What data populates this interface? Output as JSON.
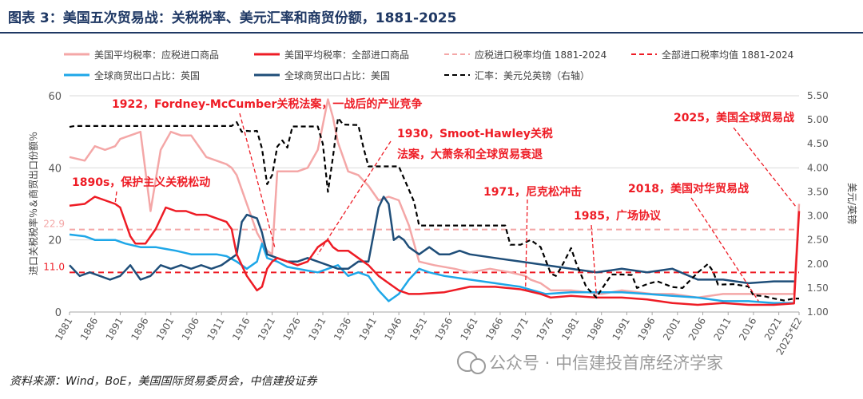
{
  "title": "图表 3：美国五次贸易战：关税税率、美元汇率和商贸份额，1881-2025",
  "source": "资料来源：Wind，BoE，美国国际贸易委员会，中信建投证券",
  "watermark": "公众号 · 中信建投首席经济学家",
  "colors": {
    "title_bar": "#1f3864",
    "tariff_dutiable": "#f4a7a7",
    "tariff_all": "#ee1c25",
    "mean_dutiable": "#f4a7a7",
    "mean_all": "#ee1c25",
    "uk_share": "#1ea7e8",
    "us_share": "#1f4e79",
    "fx": "#000000",
    "annotation": "#ee1c25"
  },
  "chart_data": {
    "type": "line",
    "legend": [
      {
        "label": "美国平均税率：应税进口商品",
        "key": "tariff_dutiable"
      },
      {
        "label": "美国平均税率：全部进口商品",
        "key": "tariff_all"
      },
      {
        "label": "应税进口税率均值 1881-2024",
        "key": "mean_dutiable"
      },
      {
        "label": "全部进口税率均值 1881-2024",
        "key": "mean_all"
      },
      {
        "label": "全球商贸出口占比：英国",
        "key": "uk_share"
      },
      {
        "label": "全球商贸出口占比：美国",
        "key": "us_share"
      },
      {
        "label": "汇率：美元兑英镑（右轴）",
        "key": "fx"
      }
    ],
    "ylabel_left": "进口关税税率％＆商贸出口份额％",
    "ylabel_right": "美元/英镑",
    "ylim_left": [
      0,
      60
    ],
    "ylim_right": [
      1.0,
      5.5
    ],
    "y_ticks_left": [
      0,
      20,
      40,
      60
    ],
    "y_ticks_right": [
      "1.00",
      "1.50",
      "2.00",
      "2.50",
      "3.00",
      "3.50",
      "4.00",
      "4.50",
      "5.00",
      "5.50"
    ],
    "ref_lines": [
      {
        "label": "22.9",
        "value": 22.9,
        "key": "mean_dutiable"
      },
      {
        "label": "11.0",
        "value": 11.0,
        "key": "mean_all"
      }
    ],
    "x_tick_labels": [
      "1881",
      "1886",
      "1891",
      "1896",
      "1901",
      "1906",
      "1911",
      "1916",
      "1921",
      "1926",
      "1931",
      "1936",
      "1941",
      "1946",
      "1951",
      "1956",
      "1961",
      "1966",
      "1971",
      "1976",
      "1981",
      "1986",
      "1991",
      "1996",
      "2001",
      "2006",
      "2011",
      "2016",
      "2021",
      "2025*E2"
    ],
    "series": {
      "tariff_dutiable": {
        "x": [
          1881,
          1884,
          1886,
          1888,
          1890,
          1891,
          1893,
          1895,
          1897,
          1899,
          1901,
          1903,
          1905,
          1908,
          1910,
          1912,
          1913,
          1914,
          1916,
          1918,
          1920,
          1921,
          1922,
          1924,
          1926,
          1928,
          1930,
          1932,
          1933,
          1934,
          1936,
          1938,
          1940,
          1942,
          1944,
          1946,
          1948,
          1950,
          1953,
          1957,
          1960,
          1964,
          1968,
          1971,
          1972,
          1974,
          1976,
          1980,
          1986,
          1990,
          1996,
          2000,
          2005,
          2010,
          2015,
          2020,
          2024,
          2025
        ],
        "y": [
          43,
          42,
          46,
          45,
          46,
          48,
          49,
          50,
          28,
          45,
          50,
          49,
          49,
          43,
          42,
          41,
          40,
          38,
          30,
          22,
          17,
          16,
          39,
          39,
          39,
          40,
          45,
          59,
          54,
          47,
          39,
          38,
          35,
          31,
          32,
          31,
          24,
          14,
          13,
          12,
          11,
          12,
          11,
          10,
          9,
          8,
          6,
          6,
          5,
          6,
          5,
          5,
          4,
          5,
          5,
          5,
          5,
          30
        ]
      },
      "tariff_all": {
        "x": [
          1881,
          1884,
          1886,
          1888,
          1890,
          1891,
          1893,
          1894,
          1896,
          1898,
          1900,
          1902,
          1904,
          1906,
          1908,
          1910,
          1912,
          1913,
          1914,
          1916,
          1918,
          1919,
          1920,
          1921,
          1922,
          1924,
          1926,
          1928,
          1930,
          1932,
          1933,
          1934,
          1936,
          1938,
          1940,
          1942,
          1944,
          1946,
          1948,
          1950,
          1955,
          1960,
          1965,
          1970,
          1971,
          1974,
          1976,
          1980,
          1985,
          1990,
          1995,
          2000,
          2005,
          2010,
          2015,
          2018,
          2020,
          2024,
          2025
        ],
        "y": [
          29.5,
          30,
          32,
          31,
          30,
          29,
          21,
          19,
          19,
          23,
          29,
          28,
          28,
          27,
          27,
          26,
          25,
          23,
          16,
          10,
          6,
          7,
          12,
          14,
          15,
          14,
          13,
          14,
          18,
          20,
          18,
          17,
          17,
          15,
          13,
          10,
          8,
          6,
          5,
          5,
          5.5,
          7,
          7,
          6.3,
          6,
          5,
          4,
          4.5,
          4,
          4,
          3.5,
          2.5,
          2,
          2.5,
          2,
          2,
          2,
          2.4,
          28
        ]
      },
      "uk_share": {
        "x": [
          1881,
          1884,
          1886,
          1888,
          1890,
          1892,
          1895,
          1898,
          1900,
          1902,
          1905,
          1908,
          1910,
          1912,
          1914,
          1916,
          1918,
          1919,
          1920,
          1922,
          1924,
          1926,
          1928,
          1930,
          1932,
          1934,
          1936,
          1938,
          1940,
          1942,
          1944,
          1946,
          1948,
          1950,
          1952,
          1955,
          1960,
          1965,
          1970,
          1975,
          1980,
          1985,
          1990,
          1995,
          2000,
          2005,
          2010,
          2015,
          2020,
          2024
        ],
        "y": [
          21.5,
          21,
          20,
          20,
          20,
          19,
          18,
          18,
          17.5,
          17,
          16,
          16,
          16,
          15.5,
          14,
          12,
          14,
          19,
          15,
          14,
          12.5,
          12,
          11.5,
          11,
          12,
          13,
          10,
          11,
          10,
          6,
          3,
          5,
          9,
          12,
          11,
          10,
          9,
          8,
          7,
          5,
          5.5,
          5.5,
          5.5,
          5,
          4.5,
          4,
          3,
          3,
          2.5,
          2.5
        ]
      },
      "us_share": {
        "x": [
          1881,
          1883,
          1885,
          1887,
          1889,
          1891,
          1893,
          1895,
          1897,
          1899,
          1901,
          1903,
          1905,
          1907,
          1909,
          1911,
          1913,
          1914,
          1915,
          1916,
          1918,
          1919,
          1920,
          1922,
          1924,
          1926,
          1928,
          1930,
          1932,
          1934,
          1936,
          1938,
          1940,
          1942,
          1943,
          1944,
          1945,
          1946,
          1947,
          1948,
          1950,
          1952,
          1954,
          1956,
          1958,
          1960,
          1965,
          1970,
          1975,
          1980,
          1985,
          1990,
          1995,
          2000,
          2005,
          2010,
          2015,
          2020,
          2024
        ],
        "y": [
          13,
          10,
          11,
          10,
          9,
          10,
          13,
          9,
          10,
          13,
          12,
          13,
          12,
          13,
          12,
          13,
          15,
          16,
          25,
          27,
          26,
          22,
          16,
          15,
          14,
          14,
          15,
          14,
          13,
          12,
          12,
          14,
          14,
          29,
          32,
          30,
          20,
          21,
          20,
          18,
          16,
          18,
          16,
          16,
          17,
          16,
          15,
          14,
          13,
          12,
          11,
          12,
          11,
          12,
          9,
          9,
          8,
          8.5,
          8.5
        ]
      },
      "fx": {
        "x": [
          1881,
          1882,
          1910,
          1913,
          1914,
          1915,
          1916,
          1917,
          1918,
          1919,
          1920,
          1921,
          1922,
          1923,
          1924,
          1925,
          1930,
          1931,
          1932,
          1933,
          1934,
          1935,
          1938,
          1939,
          1940,
          1946,
          1949,
          1950,
          1967,
          1968,
          1970,
          1972,
          1974,
          1976,
          1977,
          1978,
          1980,
          1981,
          1983,
          1985,
          1986,
          1988,
          1990,
          1992,
          1993,
          1995,
          1997,
          2000,
          2002,
          2005,
          2007,
          2008,
          2009,
          2012,
          2015,
          2016,
          2018,
          2020,
          2022,
          2024,
          2025
        ],
        "y": [
          4.85,
          4.87,
          4.87,
          4.87,
          4.95,
          4.75,
          4.77,
          4.76,
          4.77,
          4.4,
          3.66,
          3.85,
          4.44,
          4.57,
          4.42,
          4.86,
          4.86,
          4.5,
          3.5,
          4.23,
          5.04,
          4.9,
          4.89,
          4.43,
          4.03,
          4.03,
          3.3,
          2.8,
          2.8,
          2.4,
          2.4,
          2.5,
          2.35,
          1.8,
          1.75,
          1.92,
          2.33,
          2.02,
          1.52,
          1.3,
          1.47,
          1.78,
          1.78,
          1.77,
          1.5,
          1.58,
          1.64,
          1.52,
          1.5,
          1.82,
          2.0,
          1.85,
          1.57,
          1.58,
          1.53,
          1.35,
          1.33,
          1.28,
          1.24,
          1.28,
          1.28
        ]
      }
    },
    "annotations": [
      {
        "text": "1922，Fordney-McCumber关税法案，一战后的产业竞争",
        "year": 1922,
        "value": 17
      },
      {
        "text": "1890s，保护主义关税松动",
        "year": 1891,
        "value": 29
      },
      {
        "text": "1930，Smoot-Hawley关税",
        "year": 1930,
        "value": 14
      },
      {
        "text": "法案，大萧条和全球贸易衰退",
        "year": null,
        "value": null
      },
      {
        "text": "1971，尼克松冲击",
        "year": 1971,
        "value": 5.5
      },
      {
        "text": "1985，广场协议",
        "year": 1985,
        "value": 4
      },
      {
        "text": "2018，美国对华贸易战",
        "year": 2018,
        "value": 2.5
      },
      {
        "text": "2025，美国全球贸易战",
        "year": 2025,
        "value": 30
      }
    ]
  }
}
